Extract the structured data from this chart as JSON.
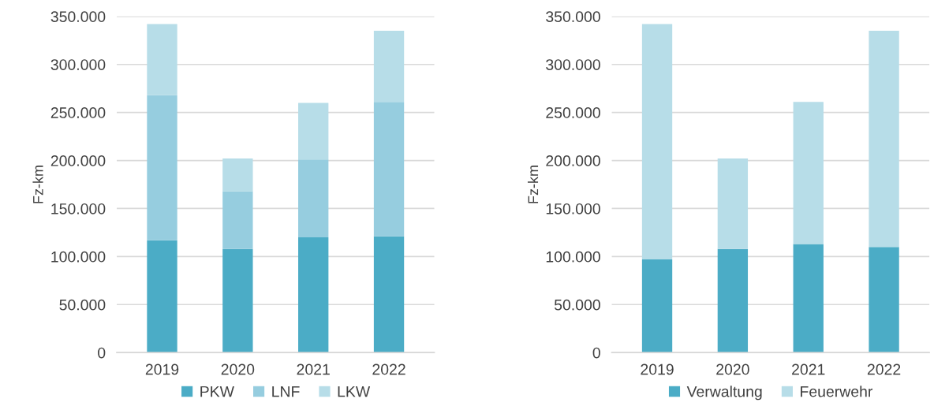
{
  "chart_data": [
    {
      "type": "bar",
      "stacked": true,
      "ylabel": "Fz-km",
      "categories": [
        "2019",
        "2020",
        "2021",
        "2022"
      ],
      "series": [
        {
          "name": "PKW",
          "color": "#4bacc6",
          "values": [
            117000,
            108000,
            120000,
            121000
          ]
        },
        {
          "name": "LNF",
          "color": "#96cddf",
          "values": [
            151000,
            60000,
            81000,
            140000
          ]
        },
        {
          "name": "LKW",
          "color": "#b7dde8",
          "values": [
            74000,
            34000,
            59000,
            74000
          ]
        }
      ],
      "ylim": [
        0,
        350000
      ],
      "yticks": [
        {
          "value": 0,
          "label": "0"
        },
        {
          "value": 50000,
          "label": "50.000"
        },
        {
          "value": 100000,
          "label": "100.000"
        },
        {
          "value": 150000,
          "label": "150.000"
        },
        {
          "value": 200000,
          "label": "200.000"
        },
        {
          "value": 250000,
          "label": "250.000"
        },
        {
          "value": 300000,
          "label": "300.000"
        },
        {
          "value": 350000,
          "label": "350.000"
        }
      ],
      "grid": "y",
      "legend": "bottom"
    },
    {
      "type": "bar",
      "stacked": true,
      "ylabel": "Fz-km",
      "categories": [
        "2019",
        "2020",
        "2021",
        "2022"
      ],
      "series": [
        {
          "name": "Verwaltung",
          "color": "#4bacc6",
          "values": [
            97000,
            108000,
            113000,
            110000
          ]
        },
        {
          "name": "Feuerwehr",
          "color": "#b7dde8",
          "values": [
            245000,
            94000,
            148000,
            225000
          ]
        }
      ],
      "ylim": [
        0,
        350000
      ],
      "yticks": [
        {
          "value": 0,
          "label": "0"
        },
        {
          "value": 50000,
          "label": "50.000"
        },
        {
          "value": 100000,
          "label": "100.000"
        },
        {
          "value": 150000,
          "label": "150.000"
        },
        {
          "value": 200000,
          "label": "200.000"
        },
        {
          "value": 250000,
          "label": "250.000"
        },
        {
          "value": 300000,
          "label": "300.000"
        },
        {
          "value": 350000,
          "label": "350.000"
        }
      ],
      "grid": "y",
      "legend": "bottom"
    }
  ]
}
